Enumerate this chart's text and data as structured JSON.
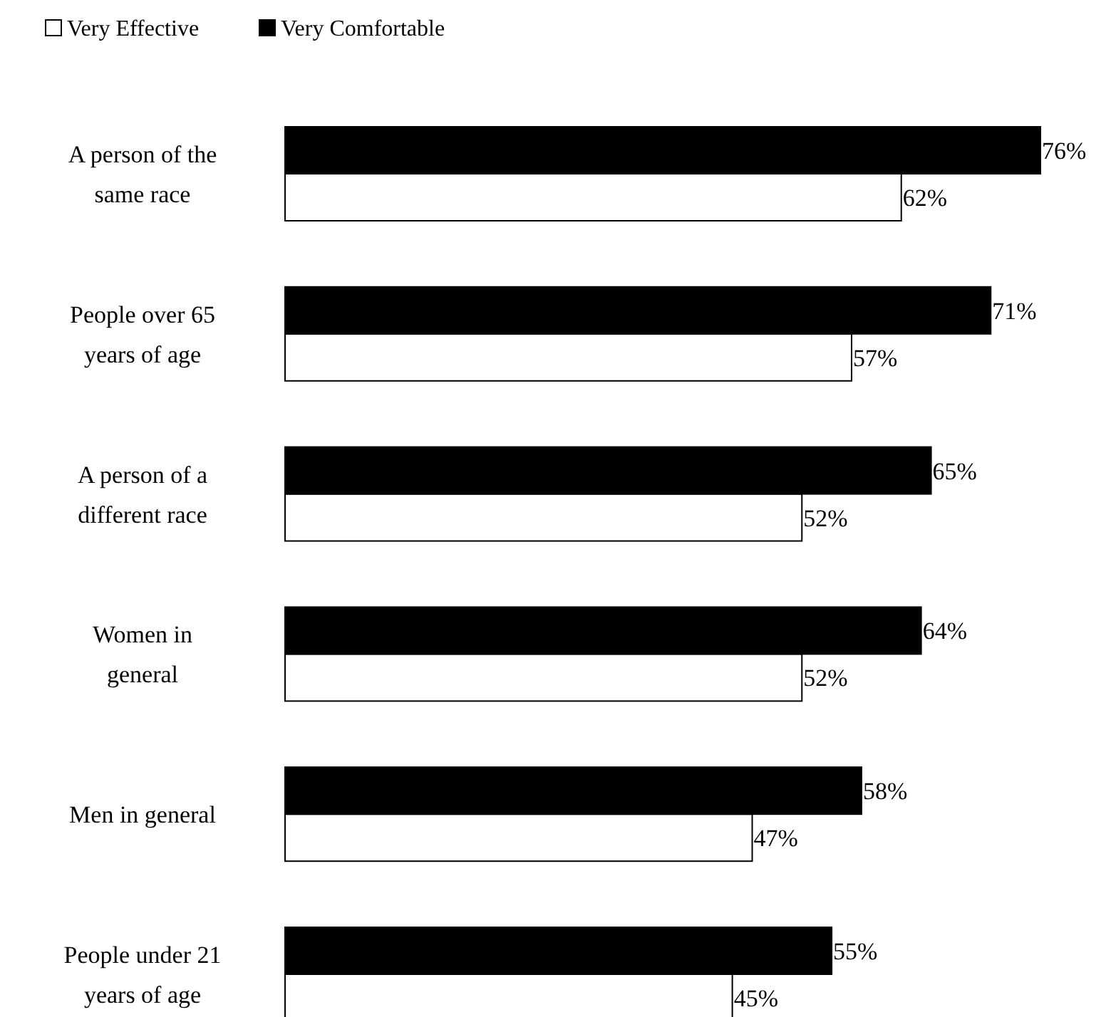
{
  "chart_data": {
    "type": "bar",
    "orientation": "horizontal",
    "categories": [
      "A person of the same race",
      "People over 65 years of age",
      "A person of a different race",
      "Women in general",
      "Men in general",
      "People under 21 years of age"
    ],
    "series": [
      {
        "name": "Very Effective",
        "color": "#ffffff",
        "values": [
          62,
          57,
          52,
          52,
          47,
          45
        ],
        "value_labels": [
          "62%",
          "57%",
          "52%",
          "52%",
          "47%",
          "45%"
        ]
      },
      {
        "name": "Very Comfortable",
        "color": "#000000",
        "values": [
          76,
          71,
          65,
          64,
          58,
          55
        ],
        "value_labels": [
          "76%",
          "71%",
          "65%",
          "64%",
          "58%",
          "55%"
        ]
      }
    ],
    "legend": "top left"
  }
}
